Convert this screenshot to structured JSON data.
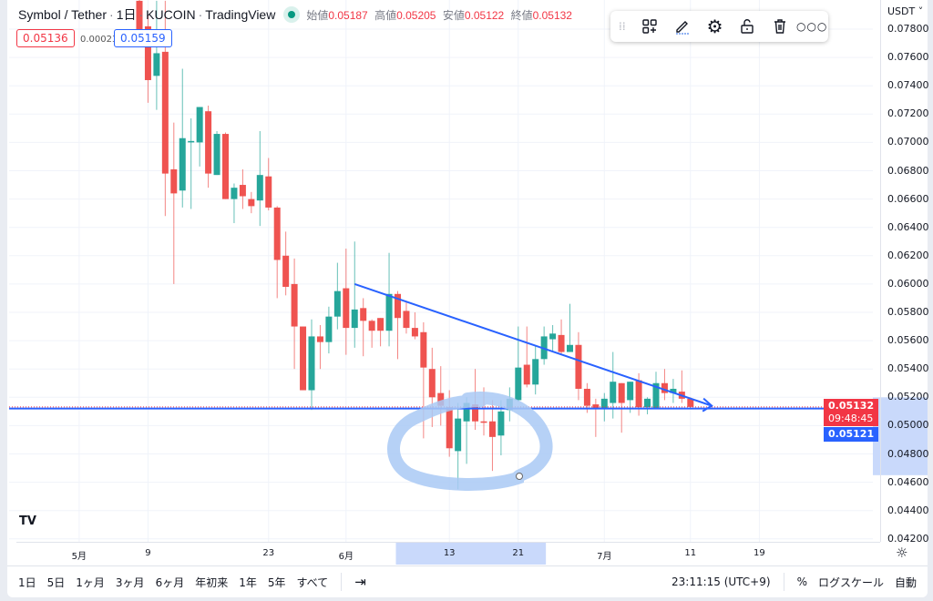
{
  "legend": {
    "symbol": "Symbol / Tether",
    "interval": "1日",
    "exchange": "KUCOIN",
    "source": "TradingView",
    "sep": "·",
    "ohlc": [
      {
        "k": "始値",
        "v": "0.05187"
      },
      {
        "k": "高値",
        "v": "0.05205"
      },
      {
        "k": "安値",
        "v": "0.05122"
      },
      {
        "k": "終値",
        "v": "0.05132"
      }
    ]
  },
  "price_boxes": {
    "sell": "0.05136",
    "spread": "0.00023",
    "buy": "0.05159"
  },
  "toolbar": {
    "icons": [
      "drag-handle-icon",
      "add-template-icon",
      "pencil-icon",
      "gear-icon",
      "unlock-icon",
      "trash-icon",
      "more-icon"
    ]
  },
  "currency": "USDT ˅",
  "colors": {
    "up": "#26a69a",
    "down": "#ef5350",
    "line": "#2962ff",
    "highlight": "#c9d9fb",
    "drawing": "#a9c9f5"
  },
  "price_tags": {
    "last": "0.05132",
    "countdown": "09:48:45",
    "line": "0.05121"
  },
  "chart_data": {
    "type": "candlestick",
    "ylim": [
      0.042,
      0.078
    ],
    "yticks": [
      "0.07800",
      "0.07600",
      "0.07400",
      "0.07200",
      "0.07000",
      "0.06800",
      "0.06600",
      "0.06400",
      "0.06200",
      "0.06000",
      "0.05800",
      "0.05600",
      "0.05400",
      "0.05200",
      "0.05000",
      "0.04800",
      "0.04600",
      "0.04400",
      "0.04200"
    ],
    "xticks": [
      {
        "label": "5月",
        "date": "05-01"
      },
      {
        "label": "9",
        "date": "05-09"
      },
      {
        "label": "23",
        "date": "05-23"
      },
      {
        "label": "6月",
        "date": "06-01"
      },
      {
        "label": "13",
        "date": "06-13"
      },
      {
        "label": "21",
        "date": "06-21"
      },
      {
        "label": "7月",
        "date": "07-01"
      },
      {
        "label": "11",
        "date": "07-11"
      },
      {
        "label": "19",
        "date": "07-19"
      }
    ],
    "fields": [
      "date",
      "open",
      "high",
      "low",
      "close"
    ],
    "candles": [
      [
        "05-08",
        0.08,
        0.081,
        0.077,
        0.0776
      ],
      [
        "05-09",
        0.0782,
        0.079,
        0.0728,
        0.0744
      ],
      [
        "05-10",
        0.0747,
        0.08,
        0.0723,
        0.0763
      ],
      [
        "05-11",
        0.0764,
        0.08,
        0.0648,
        0.0678
      ],
      [
        "05-12",
        0.0681,
        0.0714,
        0.06,
        0.0664
      ],
      [
        "05-13",
        0.0666,
        0.0752,
        0.0654,
        0.0703
      ],
      [
        "05-14",
        0.07,
        0.0717,
        0.0653,
        0.0701
      ],
      [
        "05-15",
        0.07,
        0.0725,
        0.0683,
        0.0725
      ],
      [
        "05-16",
        0.0722,
        0.0726,
        0.0668,
        0.0678
      ],
      [
        "05-17",
        0.0677,
        0.0708,
        0.0677,
        0.0706
      ],
      [
        "05-18",
        0.0706,
        0.0707,
        0.066,
        0.066
      ],
      [
        "05-19",
        0.066,
        0.0671,
        0.0643,
        0.0668
      ],
      [
        "05-20",
        0.067,
        0.0681,
        0.0653,
        0.0662
      ],
      [
        "05-21",
        0.066,
        0.0665,
        0.065,
        0.0655
      ],
      [
        "05-22",
        0.0659,
        0.0708,
        0.0641,
        0.0677
      ],
      [
        "05-23",
        0.0676,
        0.0689,
        0.0652,
        0.0654
      ],
      [
        "05-24",
        0.0654,
        0.0655,
        0.059,
        0.0617
      ],
      [
        "05-25",
        0.062,
        0.0637,
        0.0592,
        0.0598
      ],
      [
        "05-26",
        0.06,
        0.0618,
        0.054,
        0.057
      ],
      [
        "05-27",
        0.057,
        0.057,
        0.0525,
        0.0525
      ],
      [
        "05-28",
        0.0525,
        0.0575,
        0.0511,
        0.0563
      ],
      [
        "05-29",
        0.0563,
        0.0571,
        0.054,
        0.0559
      ],
      [
        "05-30",
        0.0559,
        0.0584,
        0.0551,
        0.0577
      ],
      [
        "05-31",
        0.0577,
        0.0615,
        0.0568,
        0.0595
      ],
      [
        "06-01",
        0.0597,
        0.0625,
        0.055,
        0.0569
      ],
      [
        "06-02",
        0.0569,
        0.063,
        0.0555,
        0.0582
      ],
      [
        "06-03",
        0.0583,
        0.059,
        0.0549,
        0.0574
      ],
      [
        "06-04",
        0.0574,
        0.0575,
        0.0555,
        0.0567
      ],
      [
        "06-05",
        0.0576,
        0.0576,
        0.0556,
        0.0567
      ],
      [
        "06-06",
        0.0567,
        0.0622,
        0.0556,
        0.0593
      ],
      [
        "06-07",
        0.0593,
        0.0595,
        0.0547,
        0.0576
      ],
      [
        "06-08",
        0.0581,
        0.0587,
        0.0565,
        0.0569
      ],
      [
        "06-09",
        0.0569,
        0.058,
        0.0561,
        0.0563
      ],
      [
        "06-10",
        0.0566,
        0.0573,
        0.0491,
        0.0541
      ],
      [
        "06-11",
        0.054,
        0.0555,
        0.0499,
        0.052
      ],
      [
        "06-12",
        0.0523,
        0.0542,
        0.05,
        0.0514
      ],
      [
        "06-13",
        0.0513,
        0.0525,
        0.0478,
        0.0484
      ],
      [
        "06-14",
        0.0482,
        0.0516,
        0.0455,
        0.0505
      ],
      [
        "06-15",
        0.0503,
        0.052,
        0.0473,
        0.0516
      ],
      [
        "06-16",
        0.0515,
        0.054,
        0.0497,
        0.0503
      ],
      [
        "06-17",
        0.0503,
        0.0527,
        0.0493,
        0.0502
      ],
      [
        "06-18",
        0.0503,
        0.0518,
        0.0468,
        0.0492
      ],
      [
        "06-19",
        0.0493,
        0.0518,
        0.0479,
        0.051
      ],
      [
        "06-20",
        0.0511,
        0.0527,
        0.0503,
        0.0519
      ],
      [
        "06-21",
        0.0518,
        0.057,
        0.0517,
        0.0541
      ],
      [
        "06-22",
        0.0543,
        0.057,
        0.0527,
        0.0529
      ],
      [
        "06-23",
        0.0529,
        0.0556,
        0.0522,
        0.0547
      ],
      [
        "06-24",
        0.0547,
        0.057,
        0.0543,
        0.0563
      ],
      [
        "06-25",
        0.0561,
        0.0571,
        0.0552,
        0.0565
      ],
      [
        "06-26",
        0.0564,
        0.0575,
        0.055,
        0.0552
      ],
      [
        "06-27",
        0.0552,
        0.0586,
        0.0552,
        0.0557
      ],
      [
        "06-28",
        0.0557,
        0.0566,
        0.0518,
        0.0526
      ],
      [
        "06-29",
        0.0526,
        0.053,
        0.0509,
        0.0514
      ],
      [
        "06-30",
        0.0515,
        0.0519,
        0.0492,
        0.0512
      ],
      [
        "07-01",
        0.0512,
        0.0523,
        0.0503,
        0.0519
      ],
      [
        "07-02",
        0.0516,
        0.0552,
        0.0505,
        0.0531
      ],
      [
        "07-03",
        0.053,
        0.053,
        0.0495,
        0.0516
      ],
      [
        "07-04",
        0.0518,
        0.0531,
        0.0509,
        0.0531
      ],
      [
        "07-05",
        0.0532,
        0.0537,
        0.0507,
        0.0513
      ],
      [
        "07-06",
        0.0513,
        0.052,
        0.0508,
        0.0519
      ],
      [
        "07-07",
        0.0512,
        0.0538,
        0.0512,
        0.053
      ],
      [
        "07-08",
        0.053,
        0.054,
        0.0518,
        0.0523
      ],
      [
        "07-09",
        0.0523,
        0.0533,
        0.0516,
        0.0526
      ],
      [
        "07-10",
        0.0524,
        0.0539,
        0.0516,
        0.0519
      ],
      [
        "07-11",
        0.0519,
        0.052,
        0.0512,
        0.05132
      ]
    ],
    "horizontal_line": 0.05121,
    "trend_line": {
      "from": {
        "date": "06-02",
        "price": 0.06
      },
      "to": {
        "date": "07-14",
        "price": 0.0514
      }
    },
    "price_highlight": [
      0.0465,
      0.052
    ],
    "date_highlight": [
      "06-07",
      "06-24"
    ]
  },
  "bottom": {
    "ranges": [
      "1日",
      "5日",
      "1ヶ月",
      "3ヶ月",
      "6ヶ月",
      "年初来",
      "1年",
      "5年",
      "すべて"
    ],
    "clock": "23:11:15 (UTC+9)",
    "percent": "%",
    "log": "ログスケール",
    "auto": "自動"
  }
}
